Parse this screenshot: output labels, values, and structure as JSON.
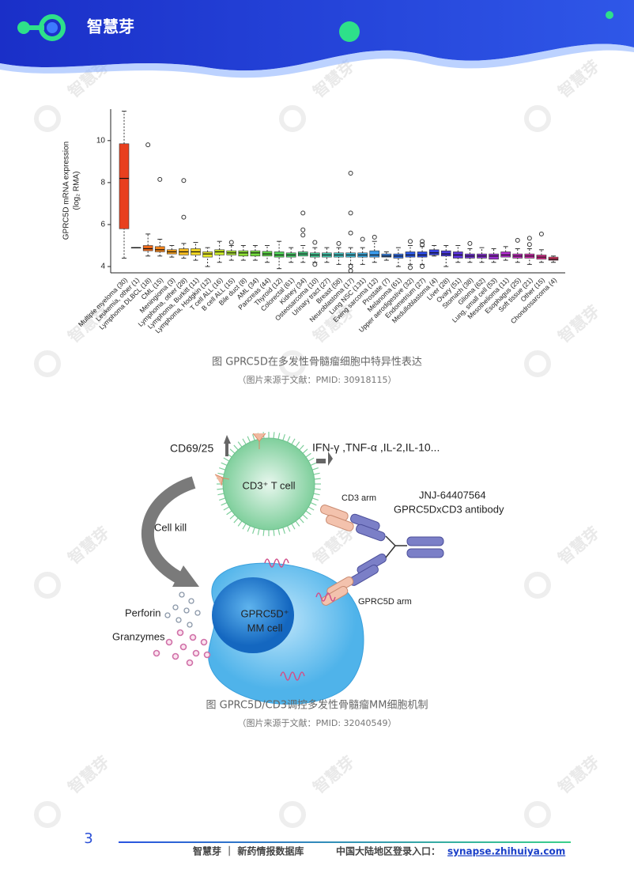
{
  "header": {
    "logo": "智慧芽"
  },
  "watermark": "智慧芽",
  "chart_data": {
    "type": "box",
    "ylabel": [
      "GPRC5D mRNA expression",
      "(log₂ RMA)"
    ],
    "ylim": [
      3.7,
      11.5
    ],
    "yticks": [
      4,
      6,
      8,
      10
    ],
    "categories": [
      "Multiple myeloma (30)",
      "Leukemia, other (1)",
      "Lymphoma DLBCL (18)",
      "CML (15)",
      "Meningioma (3)",
      "Lymphoma, other (28)",
      "Lymphoma, Burkitt (11)",
      "Lymphoma, Hodgkin (12)",
      "T cell ALL (16)",
      "B cell ALL (15)",
      "Bile duct (8)",
      "AML (34)",
      "Pancreas (44)",
      "Thyroid (12)",
      "Colorectal (61)",
      "Kidney (34)",
      "Osteosarcoma (10)",
      "Urinary tract (27)",
      "Breast (58)",
      "Neuroblastoma (17)",
      "Lung NSC (131)",
      "Ewing sarcoma (12)",
      "Prostate (7)",
      "Melanoma (61)",
      "Upper aerodigestive (32)",
      "Endometrium (27)",
      "Medulloblastoma (4)",
      "Liver (28)",
      "Ovary (51)",
      "Stomach (38)",
      "Glioma (62)",
      "Lung, small cell (53)",
      "Mesothelioma (11)",
      "Esophagus (25)",
      "Soft tissue (21)",
      "Other (15)",
      "Chondrosarcoma (4)"
    ],
    "min": [
      4.4,
      4.9,
      4.5,
      4.5,
      4.45,
      4.4,
      4.3,
      4.0,
      4.2,
      4.3,
      4.3,
      4.3,
      4.2,
      3.9,
      4.2,
      4.2,
      4.2,
      4.2,
      4.1,
      4.1,
      4.1,
      4.2,
      4.3,
      4.0,
      4.1,
      4.1,
      4.5,
      4.0,
      4.2,
      4.2,
      4.2,
      4.2,
      4.3,
      4.2,
      4.1,
      4.2,
      4.2
    ],
    "q1": [
      5.8,
      4.9,
      4.75,
      4.7,
      4.6,
      4.55,
      4.55,
      4.45,
      4.55,
      4.55,
      4.5,
      4.5,
      4.5,
      4.45,
      4.45,
      4.5,
      4.45,
      4.45,
      4.45,
      4.45,
      4.45,
      4.45,
      4.45,
      4.4,
      4.45,
      4.45,
      4.55,
      4.5,
      4.4,
      4.4,
      4.4,
      4.35,
      4.45,
      4.4,
      4.4,
      4.35,
      4.3
    ],
    "median": [
      8.2,
      4.9,
      4.85,
      4.8,
      4.7,
      4.7,
      4.7,
      4.6,
      4.7,
      4.65,
      4.65,
      4.65,
      4.6,
      4.55,
      4.55,
      4.6,
      4.55,
      4.55,
      4.55,
      4.55,
      4.55,
      4.55,
      4.5,
      4.5,
      4.55,
      4.55,
      4.65,
      4.6,
      4.55,
      4.5,
      4.5,
      4.5,
      4.55,
      4.5,
      4.5,
      4.45,
      4.35
    ],
    "q3": [
      9.85,
      4.9,
      5.0,
      4.95,
      4.8,
      4.85,
      4.85,
      4.7,
      4.8,
      4.75,
      4.75,
      4.75,
      4.72,
      4.7,
      4.65,
      4.7,
      4.65,
      4.65,
      4.65,
      4.65,
      4.65,
      4.75,
      4.6,
      4.6,
      4.7,
      4.7,
      4.8,
      4.75,
      4.7,
      4.6,
      4.6,
      4.6,
      4.7,
      4.6,
      4.6,
      4.55,
      4.45
    ],
    "max": [
      11.4,
      4.9,
      5.55,
      5.3,
      5.0,
      5.1,
      5.15,
      4.9,
      5.2,
      5.0,
      5.0,
      5.0,
      5.0,
      5.2,
      4.9,
      5.0,
      4.9,
      4.9,
      4.9,
      4.9,
      4.9,
      5.2,
      4.7,
      4.9,
      5.0,
      4.95,
      5.0,
      5.0,
      5.0,
      4.85,
      4.9,
      4.85,
      4.95,
      4.85,
      4.85,
      4.8,
      4.5
    ],
    "outliers": [
      [],
      [],
      [
        9.8
      ],
      [
        8.15
      ],
      [],
      [
        8.1,
        6.35
      ],
      [],
      [],
      [],
      [
        5.15
      ],
      [],
      [],
      [],
      [],
      [],
      [
        6.55,
        5.75,
        5.5
      ],
      [
        5.15,
        4.1
      ],
      [],
      [
        5.1
      ],
      [
        8.45,
        6.55,
        5.6,
        4.0,
        3.8
      ],
      [
        5.3
      ],
      [
        5.4
      ],
      [],
      [],
      [
        5.2,
        3.95
      ],
      [
        5.2,
        5.05,
        4.0
      ],
      [],
      [],
      [],
      [
        5.1
      ],
      [],
      [],
      [],
      [
        5.25
      ],
      [
        5.35,
        5.05
      ],
      [
        5.55
      ],
      []
    ],
    "colors": [
      "#e8401e",
      "#333333",
      "#f26b1b",
      "#f5851b",
      "#f7a01d",
      "#f6bb1f",
      "#f1d522",
      "#e4e626",
      "#c8e82a",
      "#abe530",
      "#8fe236",
      "#74de3d",
      "#5fda48",
      "#52d65a",
      "#4bd36e",
      "#48d184",
      "#46cf9a",
      "#45ccb0",
      "#44c8c6",
      "#42bfd8",
      "#3eaee4",
      "#3a9aea",
      "#3685ec",
      "#3270ec",
      "#2e5cea",
      "#2d4be6",
      "#3540e0",
      "#4838dc",
      "#5c33d8",
      "#7130d6",
      "#862ed4",
      "#9b2dd2",
      "#b02ccd",
      "#c42cc2",
      "#d22daf",
      "#dd3090",
      "#e33260"
    ]
  },
  "figure1": {
    "caption": "图  GPRC5D在多发性骨髓瘤细胞中特异性表达",
    "source": "（图片来源于文献：PMID: 30918115）"
  },
  "diagram": {
    "cd69": "CD69/25",
    "cytokines": "IFN-γ ,TNF-α ,IL-2,IL-10...",
    "tcell": "CD3⁺ T cell",
    "cd3arm": "CD3 arm",
    "drug": "JNJ-64407564",
    "antibody": "GPRC5DxCD3 antibody",
    "cellkill": "Cell kill",
    "perforin": "Perforin",
    "granzymes": "Granzymes",
    "mm1": "GPRC5D⁺",
    "mm2": "MM cell",
    "gprc5darm": "GPRC5D arm"
  },
  "figure2": {
    "caption": "图  GPRC5D/CD3调控多发性骨髓瘤MM细胞机制",
    "source": "（图片来源于文献：PMID: 32040549）"
  },
  "footer": {
    "page": "3",
    "brand": "智慧芽 ｜ 新药情报数据库",
    "entry": "中国大陆地区登录入口：",
    "url": "synapse.zhihuiya.com"
  }
}
